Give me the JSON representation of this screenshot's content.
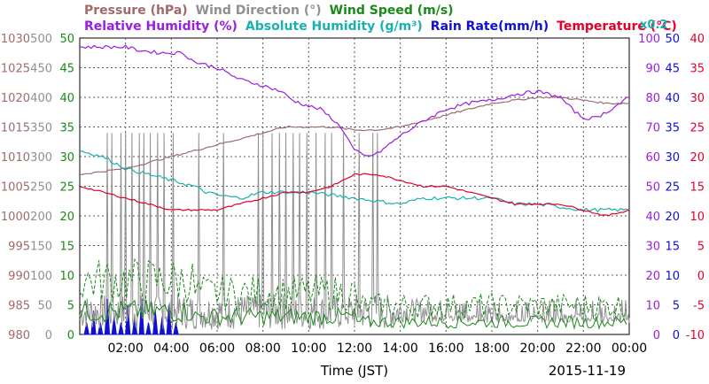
{
  "header": {
    "line1": [
      {
        "text": "Pressure (hPa)",
        "color": "#a06a6a"
      },
      {
        "text": "Wind Direction (°)",
        "color": "#909090"
      },
      {
        "text": "Wind Speed (m/s)",
        "color": "#1a8a1a"
      }
    ],
    "line2": [
      {
        "text": "Relative Humidity (%)",
        "color": "#9a1ee0"
      },
      {
        "text": "Absolute Humidity (g/m³)",
        "color": "#1ab0b0"
      },
      {
        "text": "Rain Rate(mm/h)",
        "color": "#1010d0"
      },
      {
        "text": "Temperature (°C)",
        "color": "#e0002a"
      }
    ],
    "factor": {
      "text": "x0.2",
      "color": "#1ab0b0"
    }
  },
  "footer": {
    "xlabel": "Time (JST)",
    "date": "2015-11-19"
  },
  "chart_data": {
    "type": "line",
    "x_unit": "hours",
    "xlim": [
      0,
      24
    ],
    "xticks": [
      2,
      4,
      6,
      8,
      10,
      12,
      14,
      16,
      18,
      20,
      22,
      24
    ],
    "xtick_labels": [
      "02:00",
      "04:00",
      "06:00",
      "08:00",
      "10:00",
      "12:00",
      "14:00",
      "16:00",
      "18:00",
      "20:00",
      "22:00",
      "00:00"
    ],
    "grid": true,
    "axes": {
      "pressure": {
        "color": "#a06a6a",
        "ticks": [
          "980",
          "985",
          "990",
          "995",
          "1000",
          "1005",
          "1010",
          "1015",
          "1020",
          "1025",
          "1030"
        ]
      },
      "wind_direction": {
        "color": "#909090",
        "ticks": [
          "0",
          "50",
          "100",
          "150",
          "200",
          "250",
          "300",
          "350",
          "400",
          "450",
          "500"
        ]
      },
      "wind_speed": {
        "color": "#1a8a1a",
        "ticks": [
          "0",
          "5",
          "10",
          "15",
          "20",
          "25",
          "30",
          "35",
          "40",
          "45",
          "50"
        ]
      },
      "relative_humidity": {
        "color": "#9a1ee0",
        "ticks": [
          "0",
          "10",
          "20",
          "30",
          "40",
          "50",
          "60",
          "70",
          "80",
          "90",
          "100"
        ]
      },
      "rain_rate": {
        "color": "#1010d0",
        "ticks": [
          "0",
          "5",
          "10",
          "15",
          "20",
          "25",
          "30",
          "35",
          "40",
          "45",
          "50"
        ]
      },
      "temperature": {
        "color": "#e0002a",
        "ticks": [
          "-10",
          "-5",
          "0",
          "5",
          "10",
          "15",
          "20",
          "25",
          "30",
          "35",
          "40"
        ]
      }
    },
    "series": [
      {
        "name": "Relative Humidity",
        "color": "#9a1ee0",
        "axis_range": [
          0,
          100
        ],
        "points": [
          [
            0,
            97
          ],
          [
            1,
            97
          ],
          [
            2,
            97
          ],
          [
            2.5,
            96
          ],
          [
            3.5,
            95
          ],
          [
            4.5,
            95
          ],
          [
            5,
            92
          ],
          [
            6,
            90
          ],
          [
            7,
            86
          ],
          [
            8,
            84
          ],
          [
            8.8,
            82
          ],
          [
            9.3,
            79
          ],
          [
            10,
            77
          ],
          [
            10.5,
            76
          ],
          [
            11,
            73
          ],
          [
            11.5,
            69
          ],
          [
            12,
            62
          ],
          [
            12.5,
            60
          ],
          [
            13,
            61
          ],
          [
            13.5,
            64
          ],
          [
            14,
            67
          ],
          [
            15,
            72
          ],
          [
            16,
            76
          ],
          [
            17,
            78
          ],
          [
            18,
            79
          ],
          [
            19,
            81
          ],
          [
            20,
            82
          ],
          [
            21,
            80
          ],
          [
            21.5,
            76
          ],
          [
            22,
            73
          ],
          [
            22.5,
            73
          ],
          [
            23,
            75
          ],
          [
            24,
            80
          ]
        ]
      },
      {
        "name": "Temperature",
        "color": "#e0002a",
        "axis_range": [
          -10,
          40
        ],
        "points": [
          [
            0,
            15
          ],
          [
            1,
            14
          ],
          [
            2,
            13
          ],
          [
            3,
            12
          ],
          [
            4,
            11
          ],
          [
            5,
            11
          ],
          [
            6,
            11
          ],
          [
            7,
            12
          ],
          [
            8,
            13
          ],
          [
            9,
            14
          ],
          [
            10,
            14
          ],
          [
            11,
            15
          ],
          [
            12,
            17
          ],
          [
            13,
            17
          ],
          [
            14,
            16
          ],
          [
            15,
            15
          ],
          [
            16,
            15
          ],
          [
            17,
            14
          ],
          [
            18,
            13
          ],
          [
            19,
            12
          ],
          [
            20,
            12
          ],
          [
            21,
            12
          ],
          [
            22,
            11
          ],
          [
            23,
            10
          ],
          [
            24,
            11
          ]
        ]
      },
      {
        "name": "Absolute Humidity",
        "color": "#1ab0b0",
        "axis_range": [
          0,
          50
        ],
        "points": [
          [
            0,
            31
          ],
          [
            1,
            30
          ],
          [
            2,
            28
          ],
          [
            3,
            27
          ],
          [
            4,
            26
          ],
          [
            5,
            25
          ],
          [
            5.5,
            24
          ],
          [
            6,
            23.5
          ],
          [
            7,
            23
          ],
          [
            8,
            24
          ],
          [
            9,
            24
          ],
          [
            10,
            24
          ],
          [
            11,
            23.5
          ],
          [
            12,
            23
          ],
          [
            13,
            22.5
          ],
          [
            14,
            22
          ],
          [
            15,
            23
          ],
          [
            16,
            23
          ],
          [
            17,
            23
          ],
          [
            18,
            23
          ],
          [
            19,
            22
          ],
          [
            20,
            22
          ],
          [
            21,
            21.5
          ],
          [
            22,
            21
          ],
          [
            23,
            21
          ],
          [
            24,
            21
          ]
        ]
      },
      {
        "name": "Pressure",
        "color": "#a06a6a",
        "axis_range": [
          980,
          1030
        ],
        "points": [
          [
            0,
            1007
          ],
          [
            1,
            1007.5
          ],
          [
            2,
            1008
          ],
          [
            3,
            1009
          ],
          [
            4,
            1010
          ],
          [
            5,
            1011
          ],
          [
            6,
            1012
          ],
          [
            7,
            1013
          ],
          [
            8,
            1014
          ],
          [
            9,
            1015
          ],
          [
            10,
            1015
          ],
          [
            11,
            1015
          ],
          [
            12,
            1014.5
          ],
          [
            13,
            1014.5
          ],
          [
            14,
            1015
          ],
          [
            15,
            1016
          ],
          [
            16,
            1017
          ],
          [
            17,
            1018
          ],
          [
            18,
            1019
          ],
          [
            19,
            1019.5
          ],
          [
            20,
            1020
          ],
          [
            21,
            1020
          ],
          [
            22,
            1019.5
          ],
          [
            23,
            1019
          ],
          [
            24,
            1019
          ]
        ]
      },
      {
        "name": "Wind Direction",
        "color": "#909090",
        "axis_range": [
          0,
          500
        ],
        "style": "spiky"
      },
      {
        "name": "Wind Speed",
        "color": "#1a8a1a",
        "axis_range": [
          0,
          50
        ],
        "style": "noisy"
      },
      {
        "name": "Rain Rate",
        "color": "#1010d0",
        "axis_range": [
          0,
          50
        ],
        "style": "bars"
      }
    ]
  }
}
